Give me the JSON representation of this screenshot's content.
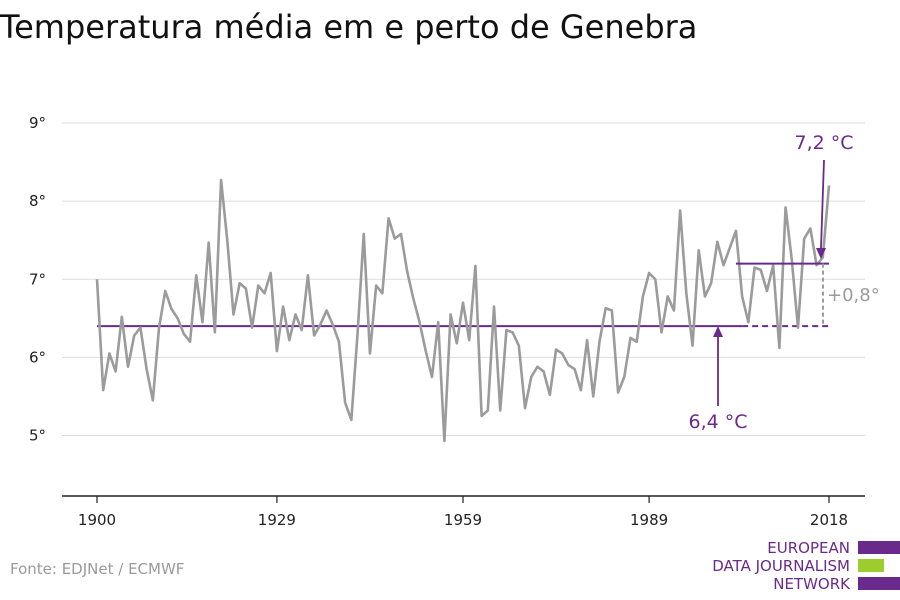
{
  "chart_data": {
    "type": "line",
    "title": "Temperatura média em e perto de Genebra",
    "xlabel": "",
    "ylabel": "",
    "xlim": [
      1900,
      2018
    ],
    "ylim": [
      4.2,
      9
    ],
    "x_ticks": [
      "1900",
      "1929",
      "1959",
      "1989",
      "2018"
    ],
    "y_ticks": [
      "5°",
      "6°",
      "7°",
      "8°",
      "9°"
    ],
    "grid": true,
    "series": [
      {
        "values": [
          [
            1900,
            7.0
          ],
          [
            1901,
            5.58
          ],
          [
            1902,
            6.05
          ],
          [
            1903,
            5.82
          ],
          [
            1904,
            6.52
          ],
          [
            1905,
            5.88
          ],
          [
            1906,
            6.28
          ],
          [
            1907,
            6.38
          ],
          [
            1908,
            5.85
          ],
          [
            1909,
            5.45
          ],
          [
            1910,
            6.38
          ],
          [
            1911,
            6.85
          ],
          [
            1912,
            6.62
          ],
          [
            1913,
            6.5
          ],
          [
            1914,
            6.3
          ],
          [
            1915,
            6.2
          ],
          [
            1916,
            7.05
          ],
          [
            1917,
            6.45
          ],
          [
            1918,
            7.47
          ],
          [
            1919,
            6.32
          ],
          [
            1920,
            8.27
          ],
          [
            1921,
            7.5
          ],
          [
            1922,
            6.55
          ],
          [
            1923,
            6.95
          ],
          [
            1924,
            6.88
          ],
          [
            1925,
            6.38
          ],
          [
            1926,
            6.92
          ],
          [
            1927,
            6.82
          ],
          [
            1928,
            7.08
          ],
          [
            1929,
            6.08
          ],
          [
            1930,
            6.65
          ],
          [
            1931,
            6.22
          ],
          [
            1932,
            6.55
          ],
          [
            1933,
            6.35
          ],
          [
            1934,
            7.05
          ],
          [
            1935,
            6.28
          ],
          [
            1936,
            6.42
          ],
          [
            1937,
            6.6
          ],
          [
            1938,
            6.42
          ],
          [
            1939,
            6.2
          ],
          [
            1940,
            5.42
          ],
          [
            1941,
            5.2
          ],
          [
            1942,
            6.3
          ],
          [
            1943,
            7.58
          ],
          [
            1944,
            6.05
          ],
          [
            1945,
            6.92
          ],
          [
            1946,
            6.82
          ],
          [
            1947,
            7.78
          ],
          [
            1948,
            7.52
          ],
          [
            1949,
            7.58
          ],
          [
            1950,
            7.1
          ],
          [
            1951,
            6.75
          ],
          [
            1952,
            6.45
          ],
          [
            1953,
            6.08
          ],
          [
            1954,
            5.75
          ],
          [
            1955,
            6.45
          ],
          [
            1956,
            4.93
          ],
          [
            1957,
            6.55
          ],
          [
            1958,
            6.18
          ],
          [
            1959,
            6.7
          ],
          [
            1960,
            6.22
          ],
          [
            1961,
            7.17
          ],
          [
            1962,
            5.25
          ],
          [
            1963,
            5.32
          ],
          [
            1964,
            6.65
          ],
          [
            1965,
            5.32
          ],
          [
            1966,
            6.35
          ],
          [
            1967,
            6.32
          ],
          [
            1968,
            6.15
          ],
          [
            1969,
            5.35
          ],
          [
            1970,
            5.75
          ],
          [
            1971,
            5.88
          ],
          [
            1972,
            5.82
          ],
          [
            1973,
            5.52
          ],
          [
            1974,
            6.1
          ],
          [
            1975,
            6.05
          ],
          [
            1976,
            5.9
          ],
          [
            1977,
            5.85
          ],
          [
            1978,
            5.58
          ],
          [
            1979,
            6.22
          ],
          [
            1980,
            5.5
          ],
          [
            1981,
            6.2
          ],
          [
            1982,
            6.63
          ],
          [
            1983,
            6.6
          ],
          [
            1984,
            5.55
          ],
          [
            1985,
            5.75
          ],
          [
            1986,
            6.25
          ],
          [
            1987,
            6.2
          ],
          [
            1988,
            6.78
          ],
          [
            1989,
            7.08
          ],
          [
            1990,
            7.0
          ],
          [
            1991,
            6.32
          ],
          [
            1992,
            6.78
          ],
          [
            1993,
            6.6
          ],
          [
            1994,
            7.88
          ],
          [
            1995,
            6.82
          ],
          [
            1996,
            6.15
          ],
          [
            1997,
            7.37
          ],
          [
            1998,
            6.78
          ],
          [
            1999,
            6.95
          ],
          [
            2000,
            7.48
          ],
          [
            2001,
            7.18
          ],
          [
            2002,
            7.4
          ],
          [
            2003,
            7.62
          ],
          [
            2004,
            6.78
          ],
          [
            2005,
            6.45
          ],
          [
            2006,
            7.15
          ],
          [
            2007,
            7.12
          ],
          [
            2008,
            6.85
          ],
          [
            2009,
            7.18
          ],
          [
            2010,
            6.12
          ],
          [
            2011,
            7.92
          ],
          [
            2012,
            7.25
          ],
          [
            2013,
            6.38
          ],
          [
            2014,
            7.52
          ],
          [
            2015,
            7.65
          ],
          [
            2016,
            7.18
          ],
          [
            2017,
            7.28
          ],
          [
            2018,
            8.2
          ]
        ]
      }
    ],
    "reference_lines": [
      {
        "label": "6,4 °C",
        "value": 6.4,
        "x_solid_end": 2004,
        "x_end": 2018
      },
      {
        "label": "7,2 °C",
        "value": 7.2,
        "x_start": 2003,
        "x_end": 2018
      }
    ],
    "difference_label": "+0,8°",
    "colors": {
      "series": "#9b9b9b",
      "reference": "#6a2a8c",
      "difference": "#9b9b9b",
      "grid": "#dddddd",
      "axis": "#222222"
    }
  },
  "source": "Fonte: EDJNet / ECMWF",
  "logo": {
    "lines": [
      "EUROPEAN",
      "DATA JOURNALISM",
      "NETWORK"
    ],
    "text_color": "#6a2a8c",
    "bar_colors": [
      "#6a2a8c",
      "#9ccd2d",
      "#6a2a8c"
    ]
  }
}
